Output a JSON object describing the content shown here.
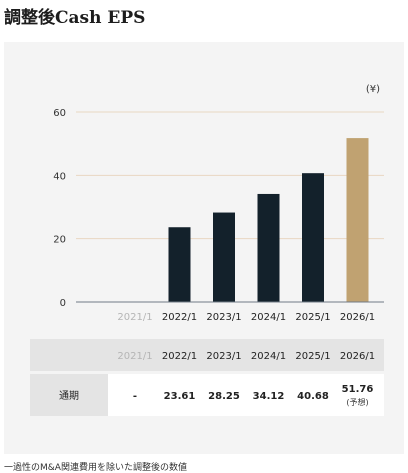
{
  "title": "調整後Cash EPS",
  "footnote": "一過性のM&A関連費用を除いた調整後の数値",
  "chart_data": {
    "type": "bar",
    "unit_label": "(¥)",
    "categories": [
      "2021/1",
      "2022/1",
      "2023/1",
      "2024/1",
      "2025/1",
      "2026/1"
    ],
    "values": [
      null,
      23.61,
      28.25,
      34.12,
      40.68,
      51.76
    ],
    "ylim": [
      0,
      60
    ],
    "yticks": [
      "0",
      "20",
      "40",
      "60"
    ],
    "grid": true,
    "colors": {
      "actual": "#13212b",
      "forecast": "#c0a271",
      "grid": "#e9d7c2",
      "axis": "#6f7a86",
      "muted_label": "#b5b5b5"
    }
  },
  "table": {
    "headers": [
      "2021/1",
      "2022/1",
      "2023/1",
      "2024/1",
      "2025/1",
      "2026/1"
    ],
    "row_label": "通期",
    "cells": [
      "-",
      "23.61",
      "28.25",
      "34.12",
      "40.68",
      "51.76"
    ],
    "forecast_note": "(予想)"
  }
}
